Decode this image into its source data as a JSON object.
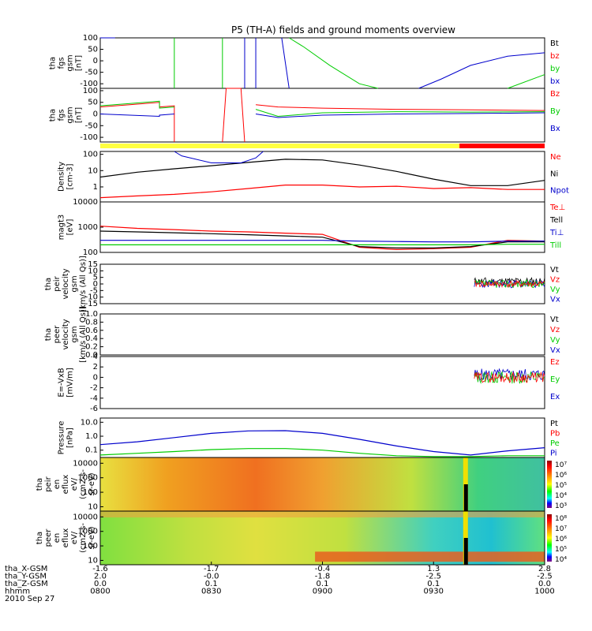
{
  "title": "P5 (TH-A) fields and ground moments overview",
  "colors": {
    "black": "#000000",
    "red": "#ff0000",
    "green": "#00cc00",
    "blue": "#0000cc",
    "yellow": "#ffff40"
  },
  "panels": [
    {
      "id": "fgs",
      "ylabel": [
        "tha",
        "fgs",
        "gsm",
        "[nT]"
      ],
      "scale": "linear",
      "ylim": [
        -120,
        100
      ],
      "ticks": [
        {
          "v": 100,
          "t": "100"
        },
        {
          "v": 50,
          "t": "50"
        },
        {
          "v": 0,
          "t": "0"
        },
        {
          "v": -50,
          "t": "-50"
        },
        {
          "v": -100,
          "t": "-100"
        }
      ],
      "legend": [
        {
          "t": "Bt",
          "c": "black"
        },
        {
          "t": "bz",
          "c": "red"
        },
        {
          "t": "by",
          "c": "green"
        },
        {
          "t": "bx",
          "c": "blue"
        }
      ]
    },
    {
      "id": "fge",
      "ylabel": [
        "tha",
        "fgs",
        "gsm",
        "[nT]"
      ],
      "scale": "linear",
      "ylim": [
        -120,
        110
      ],
      "ticks": [
        {
          "v": 100,
          "t": "100"
        },
        {
          "v": 50,
          "t": "50"
        },
        {
          "v": 0,
          "t": "0"
        },
        {
          "v": -50,
          "t": "-50"
        },
        {
          "v": -100,
          "t": "-100"
        }
      ],
      "legend": [
        {
          "t": "Bz",
          "c": "red"
        },
        {
          "t": "By",
          "c": "green"
        },
        {
          "t": "Bx",
          "c": "blue"
        }
      ]
    },
    {
      "id": "density",
      "ylabel": [
        "Density",
        "[cm-3]"
      ],
      "scale": "log",
      "ylim": [
        0.12,
        150
      ],
      "ticks": [
        {
          "v": 100,
          "t": "100"
        },
        {
          "v": 10,
          "t": "10"
        },
        {
          "v": 1,
          "t": "1"
        },
        {
          "v": 0.1,
          "t": "0.1"
        }
      ],
      "legend": [
        {
          "t": "Ne",
          "c": "red"
        },
        {
          "t": "Ni",
          "c": "black"
        },
        {
          "t": "Npot",
          "c": "blue"
        }
      ]
    },
    {
      "id": "temp",
      "ylabel": [
        "magt3",
        "[eV]"
      ],
      "scale": "log",
      "ylim": [
        100,
        10000
      ],
      "ticks": [
        {
          "v": 10000,
          "t": "10000"
        },
        {
          "v": 1000,
          "t": "1000"
        },
        {
          "v": 100,
          "t": "100"
        }
      ],
      "legend": [
        {
          "t": "Te⊥",
          "c": "red"
        },
        {
          "t": "Tell",
          "c": "black"
        },
        {
          "t": "Ti⊥",
          "c": "blue"
        },
        {
          "t": "Till",
          "c": "green"
        }
      ]
    },
    {
      "id": "peir",
      "ylabel": [
        "tha",
        "peir",
        "velocity",
        "gsm",
        "[km/s (All Qs)]"
      ],
      "scale": "linear",
      "ylim": [
        -15,
        15
      ],
      "ticks": [
        {
          "v": 15,
          "t": "15"
        },
        {
          "v": 10,
          "t": "10"
        },
        {
          "v": 5,
          "t": "5"
        },
        {
          "v": 0,
          "t": "0"
        },
        {
          "v": -5,
          "t": "-5"
        },
        {
          "v": -10,
          "t": "-10"
        },
        {
          "v": -15,
          "t": "-15"
        }
      ],
      "legend": [
        {
          "t": "Vt",
          "c": "black"
        },
        {
          "t": "Vz",
          "c": "red"
        },
        {
          "t": "Vy",
          "c": "green"
        },
        {
          "t": "Vx",
          "c": "blue"
        }
      ]
    },
    {
      "id": "peer",
      "ylabel": [
        "tha",
        "peer",
        "velocity",
        "gsm",
        "[km/s (All Qs)]"
      ],
      "scale": "linear",
      "ylim": [
        0,
        1
      ],
      "ticks": [
        {
          "v": 1,
          "t": "1.0"
        },
        {
          "v": 0.8,
          "t": "0.8"
        },
        {
          "v": 0.6,
          "t": "0.6"
        },
        {
          "v": 0.4,
          "t": "0.4"
        },
        {
          "v": 0.2,
          "t": "0.2"
        },
        {
          "v": 0,
          "t": "0.0"
        }
      ],
      "legend": [
        {
          "t": "Vt",
          "c": "black"
        },
        {
          "t": "Vz",
          "c": "red"
        },
        {
          "t": "Vy",
          "c": "green"
        },
        {
          "t": "Vx",
          "c": "blue"
        }
      ]
    },
    {
      "id": "efield",
      "ylabel": [
        "E=-VxB",
        "[mV/m]"
      ],
      "scale": "linear",
      "ylim": [
        -6,
        4
      ],
      "ticks": [
        {
          "v": 4,
          "t": "4"
        },
        {
          "v": 2,
          "t": "2"
        },
        {
          "v": 0,
          "t": "0"
        },
        {
          "v": -2,
          "t": "-2"
        },
        {
          "v": -4,
          "t": "-4"
        },
        {
          "v": -6,
          "t": "-6"
        }
      ],
      "legend": [
        {
          "t": "Ez",
          "c": "red"
        },
        {
          "t": "Ey",
          "c": "green"
        },
        {
          "t": "Ex",
          "c": "blue"
        }
      ]
    },
    {
      "id": "pressure",
      "ylabel": [
        "Pressure",
        "[nPa]"
      ],
      "scale": "log",
      "ylim": [
        0.03,
        20
      ],
      "ticks": [
        {
          "v": 10,
          "t": "10.0"
        },
        {
          "v": 1,
          "t": "1.0"
        },
        {
          "v": 0.1,
          "t": "0.1"
        }
      ],
      "legend": [
        {
          "t": "Pt",
          "c": "black"
        },
        {
          "t": "Pb",
          "c": "red"
        },
        {
          "t": "Pe",
          "c": "green"
        },
        {
          "t": "Pi",
          "c": "blue"
        }
      ]
    },
    {
      "id": "peir_spec",
      "ylabel": [
        "tha",
        "peir",
        "en",
        "eflux",
        "eV/",
        "(cm2-s-",
        "sr-eV)"
      ],
      "scale": "log",
      "ylim": [
        5,
        25000
      ],
      "ticks": [
        {
          "v": 10000,
          "t": "10000"
        },
        {
          "v": 1000,
          "t": "1000"
        },
        {
          "v": 100,
          "t": "100"
        },
        {
          "v": 10,
          "t": "10"
        }
      ],
      "cbar": [
        "10⁷",
        "10⁶",
        "10⁵",
        "10⁴",
        "10³"
      ],
      "legend": []
    },
    {
      "id": "peer_spec",
      "ylabel": [
        "tha",
        "peer",
        "en",
        "eflux",
        "eV/",
        "(cm2-s-",
        "sr-eV)"
      ],
      "scale": "log",
      "ylim": [
        5,
        25000
      ],
      "ticks": [
        {
          "v": 10000,
          "t": "10000"
        },
        {
          "v": 1000,
          "t": "1000"
        },
        {
          "v": 100,
          "t": "100"
        },
        {
          "v": 10,
          "t": "10"
        }
      ],
      "cbar": [
        "10⁸",
        "10⁷",
        "10⁶",
        "10⁵",
        "10⁴"
      ],
      "legend": []
    }
  ],
  "xaxis": {
    "rows": [
      {
        "name": "tha_X-GSM",
        "values": [
          "-1.6",
          "-1.7",
          "-0.4",
          "1.3",
          "2.8"
        ]
      },
      {
        "name": "tha_Y-GSM",
        "values": [
          "2.0",
          "-0.0",
          "-1.8",
          "-2.5",
          "-2.5"
        ]
      },
      {
        "name": "tha_Z-GSM",
        "values": [
          "0.0",
          "0.1",
          "0.1",
          "0.1",
          "0.0"
        ]
      },
      {
        "name": "hhmm",
        "values": [
          "0800",
          "0830",
          "0900",
          "0930",
          "1000"
        ]
      }
    ],
    "date": "2010 Sep 27"
  },
  "chart_data": {
    "type": "line",
    "x_minutes_since_0800": [
      0,
      10,
      20,
      30,
      40,
      50,
      60,
      70,
      80,
      90,
      100,
      110,
      120
    ],
    "series": [
      {
        "panel": "density",
        "name": "Ni",
        "values": [
          4,
          8,
          13,
          20,
          32,
          50,
          45,
          22,
          9,
          3,
          1.2,
          1.2,
          2.5
        ]
      },
      {
        "panel": "density",
        "name": "Ne",
        "values": [
          0.22,
          0.28,
          0.35,
          0.5,
          0.8,
          1.3,
          1.3,
          1.0,
          1.1,
          0.8,
          0.9,
          0.7,
          0.7
        ]
      },
      {
        "panel": "temp",
        "name": "Te⊥",
        "values": [
          1100,
          900,
          800,
          700,
          650,
          580,
          520,
          160,
          130,
          140,
          160,
          300,
          280
        ]
      },
      {
        "panel": "temp",
        "name": "Tell",
        "values": [
          700,
          650,
          600,
          550,
          500,
          450,
          400,
          170,
          150,
          150,
          170,
          260,
          260
        ]
      },
      {
        "panel": "temp",
        "name": "Ti⊥",
        "values": [
          300,
          300,
          300,
          300,
          300,
          300,
          300,
          280,
          270,
          260,
          260,
          280,
          280
        ]
      },
      {
        "panel": "temp",
        "name": "Till",
        "values": [
          200,
          200,
          200,
          200,
          200,
          200,
          200,
          200,
          200,
          200,
          200,
          210,
          210
        ]
      },
      {
        "panel": "pressure",
        "name": "Pi",
        "values": [
          0.25,
          0.4,
          0.8,
          1.6,
          2.4,
          2.5,
          1.6,
          0.6,
          0.2,
          0.08,
          0.045,
          0.09,
          0.15
        ]
      },
      {
        "panel": "pressure",
        "name": "Pe",
        "values": [
          0.045,
          0.06,
          0.08,
          0.11,
          0.13,
          0.13,
          0.1,
          0.06,
          0.04,
          0.035,
          0.035,
          0.04,
          0.04
        ]
      }
    ]
  }
}
